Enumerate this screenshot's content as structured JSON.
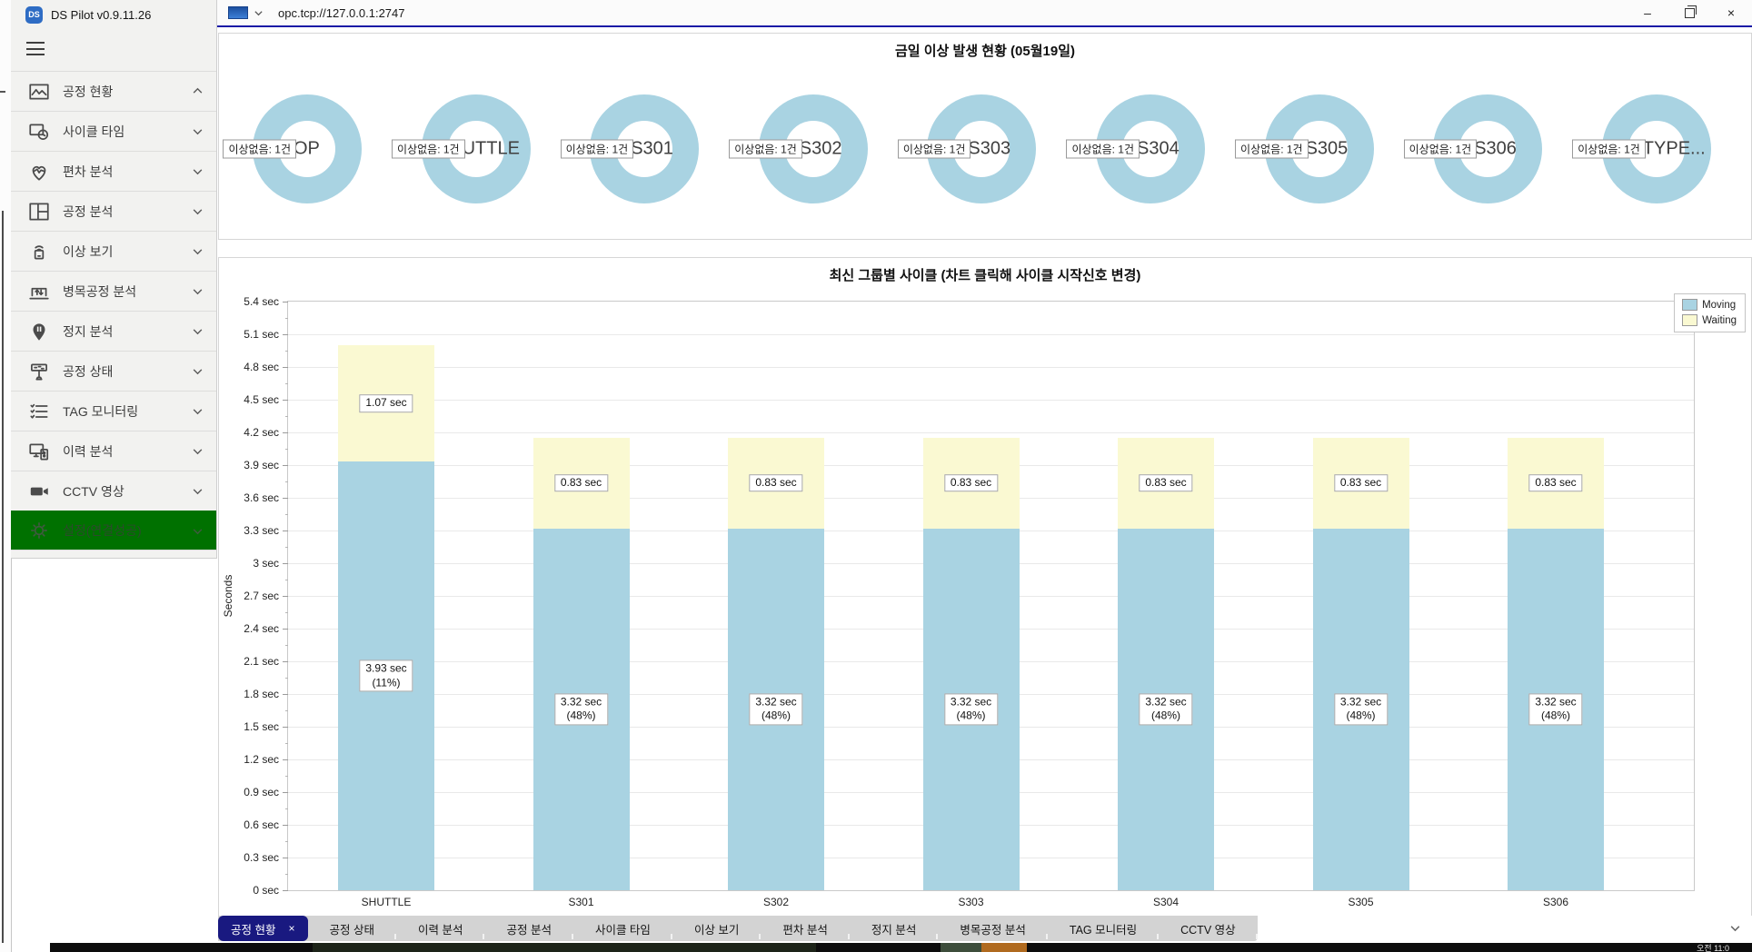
{
  "app": {
    "title": "DS Pilot v0.9.11.26",
    "logo_text": "DS"
  },
  "window": {
    "address": "opc.tcp://127.0.0.1:2747",
    "controls": {
      "minimize": "–",
      "close": "×"
    }
  },
  "sidebar": {
    "items": [
      {
        "label": "공정 현황",
        "icon": "chart-image",
        "expanded": true,
        "highlighted": false
      },
      {
        "label": "사이클 타임",
        "icon": "monitor-clock",
        "expanded": false,
        "highlighted": false
      },
      {
        "label": "편차 분석",
        "icon": "heartbeat",
        "expanded": false,
        "highlighted": false
      },
      {
        "label": "공정 분석",
        "icon": "grid-layout",
        "expanded": false,
        "highlighted": false
      },
      {
        "label": "이상 보기",
        "icon": "device-signal",
        "expanded": false,
        "highlighted": false
      },
      {
        "label": "병목공정 분석",
        "icon": "laptop-arrows",
        "expanded": false,
        "highlighted": false
      },
      {
        "label": "정지 분석",
        "icon": "map-pin-pause",
        "expanded": false,
        "highlighted": false
      },
      {
        "label": "공정 상태",
        "icon": "signboard",
        "expanded": false,
        "highlighted": false
      },
      {
        "label": "TAG 모니터링",
        "icon": "checklist",
        "expanded": false,
        "highlighted": false
      },
      {
        "label": "이력 분석",
        "icon": "monitor-devices",
        "expanded": false,
        "highlighted": false
      },
      {
        "label": "CCTV 영상",
        "icon": "video-camera",
        "expanded": false,
        "highlighted": false
      },
      {
        "label": "설정(연결성공)",
        "icon": "gear",
        "expanded": false,
        "highlighted": true
      }
    ]
  },
  "donut_panel": {
    "title": "금일 이상 발생 현황 (05월19일)",
    "badge_label": "이상없음: 1건",
    "ring_color": "#A9D3E2",
    "groups": [
      "OP",
      "UTTLE",
      "S301",
      "S302",
      "S303",
      "S304",
      "S305",
      "S306",
      "TYPE..."
    ]
  },
  "chart_data": {
    "type": "bar",
    "stacked": true,
    "title": "최신 그룹별 사이클 (차트 클릭해 사이클 시작신호 변경)",
    "ylabel": "Seconds",
    "ylim": [
      0,
      5.4
    ],
    "ytick_step": 0.3,
    "ytick_suffix": " sec",
    "grid": true,
    "legend_position": "top-right",
    "categories": [
      "SHUTTLE",
      "S301",
      "S302",
      "S303",
      "S304",
      "S305",
      "S306"
    ],
    "series": [
      {
        "name": "Moving",
        "color": "#A9D3E2",
        "values": [
          3.93,
          3.32,
          3.32,
          3.32,
          3.32,
          3.32,
          3.32
        ],
        "bar_labels": [
          "3.93 sec\n(11%)",
          "3.32 sec\n(48%)",
          "3.32 sec\n(48%)",
          "3.32 sec\n(48%)",
          "3.32 sec\n(48%)",
          "3.32 sec\n(48%)",
          "3.32 sec\n(48%)"
        ]
      },
      {
        "name": "Waiting",
        "color": "#FAF9D2",
        "values": [
          1.07,
          0.83,
          0.83,
          0.83,
          0.83,
          0.83,
          0.83
        ],
        "bar_labels": [
          "1.07 sec",
          "0.83 sec",
          "0.83 sec",
          "0.83 sec",
          "0.83 sec",
          "0.83 sec",
          "0.83 sec"
        ]
      }
    ]
  },
  "tab_bar": {
    "close_glyph": "×",
    "tabs": [
      {
        "label": "공정 현황",
        "active": true
      },
      {
        "label": "공정 상태",
        "active": false
      },
      {
        "label": "이력 분석",
        "active": false
      },
      {
        "label": "공정 분석",
        "active": false
      },
      {
        "label": "사이클 타임",
        "active": false
      },
      {
        "label": "이상 보기",
        "active": false
      },
      {
        "label": "편차 분석",
        "active": false
      },
      {
        "label": "정지 분석",
        "active": false
      },
      {
        "label": "병목공정 분석",
        "active": false
      },
      {
        "label": "TAG 모니터링",
        "active": false
      },
      {
        "label": "CCTV 영상",
        "active": false
      }
    ]
  },
  "taskbar": {
    "time": "오전 11:0"
  }
}
